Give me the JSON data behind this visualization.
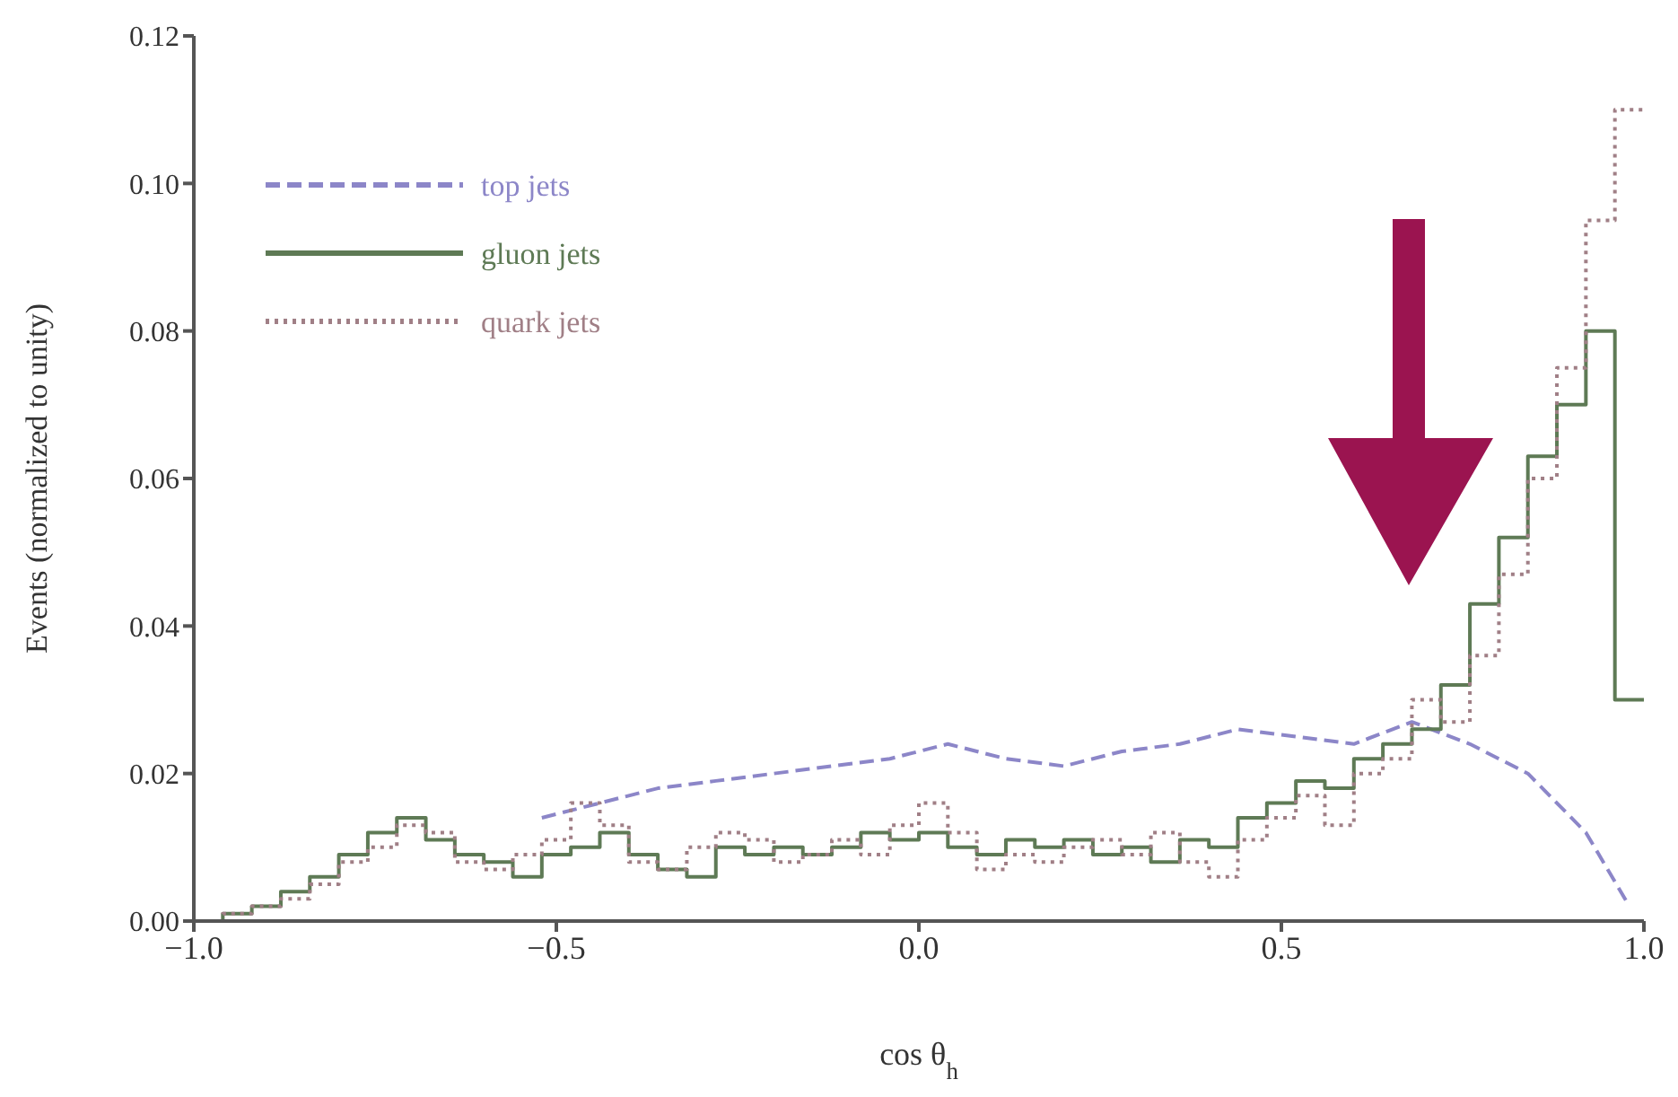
{
  "chart_data": {
    "type": "step",
    "xlabel": "cos θ$_{h}$",
    "ylabel": "Events (normalized to unity)",
    "xlim": [
      -1.0,
      1.0
    ],
    "ylim": [
      0,
      0.12
    ],
    "xticks": [
      {
        "value": -1,
        "label": "−1.0"
      },
      {
        "value": -0.5,
        "label": "−0.5"
      },
      {
        "value": 0,
        "label": "0.0"
      },
      {
        "value": 0.5,
        "label": "0.5"
      },
      {
        "value": 1,
        "label": "1.0"
      }
    ],
    "yticks": [
      {
        "value": 0,
        "label": "0.00"
      },
      {
        "value": 0.02,
        "label": "0.02"
      },
      {
        "value": 0.04,
        "label": "0.04"
      },
      {
        "value": 0.06,
        "label": "0.06"
      },
      {
        "value": 0.08,
        "label": "0.08"
      },
      {
        "value": 0.1,
        "label": "0.10"
      },
      {
        "value": 0.12,
        "label": "0.12"
      }
    ],
    "legend": "top left",
    "grid": false,
    "series": [
      {
        "name": "top jets",
        "type": "line",
        "line_style": "dashed",
        "color": "#8c86c8",
        "x": [
          -0.52,
          -0.44,
          -0.36,
          -0.28,
          -0.2,
          -0.12,
          -0.04,
          0.04,
          0.12,
          0.2,
          0.28,
          0.36,
          0.44,
          0.52,
          0.6,
          0.68,
          0.76,
          0.84,
          0.92,
          0.98
        ],
        "values": [
          0.014,
          0.016,
          0.018,
          0.019,
          0.02,
          0.021,
          0.022,
          0.024,
          0.022,
          0.021,
          0.023,
          0.024,
          0.026,
          0.025,
          0.024,
          0.027,
          0.024,
          0.02,
          0.012,
          0.002
        ]
      },
      {
        "name": "gluon jets",
        "type": "step",
        "line_style": "solid",
        "color": "#5e7a55",
        "x": [
          -1.0,
          -0.96,
          -0.92,
          -0.88,
          -0.84,
          -0.8,
          -0.76,
          -0.72,
          -0.68,
          -0.64,
          -0.6,
          -0.56,
          -0.52,
          -0.48,
          -0.44,
          -0.4,
          -0.36,
          -0.32,
          -0.28,
          -0.24,
          -0.2,
          -0.16,
          -0.12,
          -0.08,
          -0.04,
          0.0,
          0.04,
          0.08,
          0.12,
          0.16,
          0.2,
          0.24,
          0.28,
          0.32,
          0.36,
          0.4,
          0.44,
          0.48,
          0.52,
          0.56,
          0.6,
          0.64,
          0.68,
          0.72,
          0.76,
          0.8,
          0.84,
          0.88,
          0.92,
          0.96,
          1.0
        ],
        "values": [
          0.0,
          0.001,
          0.002,
          0.004,
          0.006,
          0.009,
          0.012,
          0.014,
          0.011,
          0.009,
          0.008,
          0.006,
          0.009,
          0.01,
          0.012,
          0.009,
          0.007,
          0.006,
          0.01,
          0.009,
          0.01,
          0.009,
          0.01,
          0.012,
          0.011,
          0.012,
          0.01,
          0.009,
          0.011,
          0.01,
          0.011,
          0.009,
          0.01,
          0.008,
          0.011,
          0.01,
          0.014,
          0.016,
          0.019,
          0.018,
          0.022,
          0.024,
          0.026,
          0.032,
          0.043,
          0.052,
          0.063,
          0.07,
          0.08,
          0.03,
          0.03
        ]
      },
      {
        "name": "quark jets",
        "type": "step",
        "line_style": "dotted",
        "color": "#a07f86",
        "x": [
          -1.0,
          -0.96,
          -0.92,
          -0.88,
          -0.84,
          -0.8,
          -0.76,
          -0.72,
          -0.68,
          -0.64,
          -0.6,
          -0.56,
          -0.52,
          -0.48,
          -0.44,
          -0.4,
          -0.36,
          -0.32,
          -0.28,
          -0.24,
          -0.2,
          -0.16,
          -0.12,
          -0.08,
          -0.04,
          0.0,
          0.04,
          0.08,
          0.12,
          0.16,
          0.2,
          0.24,
          0.28,
          0.32,
          0.36,
          0.4,
          0.44,
          0.48,
          0.52,
          0.56,
          0.6,
          0.64,
          0.68,
          0.72,
          0.76,
          0.8,
          0.84,
          0.88,
          0.92,
          0.96,
          1.0
        ],
        "values": [
          0.0,
          0.001,
          0.002,
          0.003,
          0.005,
          0.008,
          0.01,
          0.013,
          0.012,
          0.008,
          0.007,
          0.009,
          0.011,
          0.016,
          0.013,
          0.008,
          0.007,
          0.01,
          0.012,
          0.011,
          0.008,
          0.009,
          0.011,
          0.009,
          0.013,
          0.016,
          0.012,
          0.007,
          0.009,
          0.008,
          0.01,
          0.011,
          0.009,
          0.012,
          0.008,
          0.006,
          0.011,
          0.014,
          0.017,
          0.013,
          0.02,
          0.022,
          0.03,
          0.027,
          0.036,
          0.047,
          0.06,
          0.075,
          0.095,
          0.11,
          0.11
        ]
      }
    ]
  }
}
